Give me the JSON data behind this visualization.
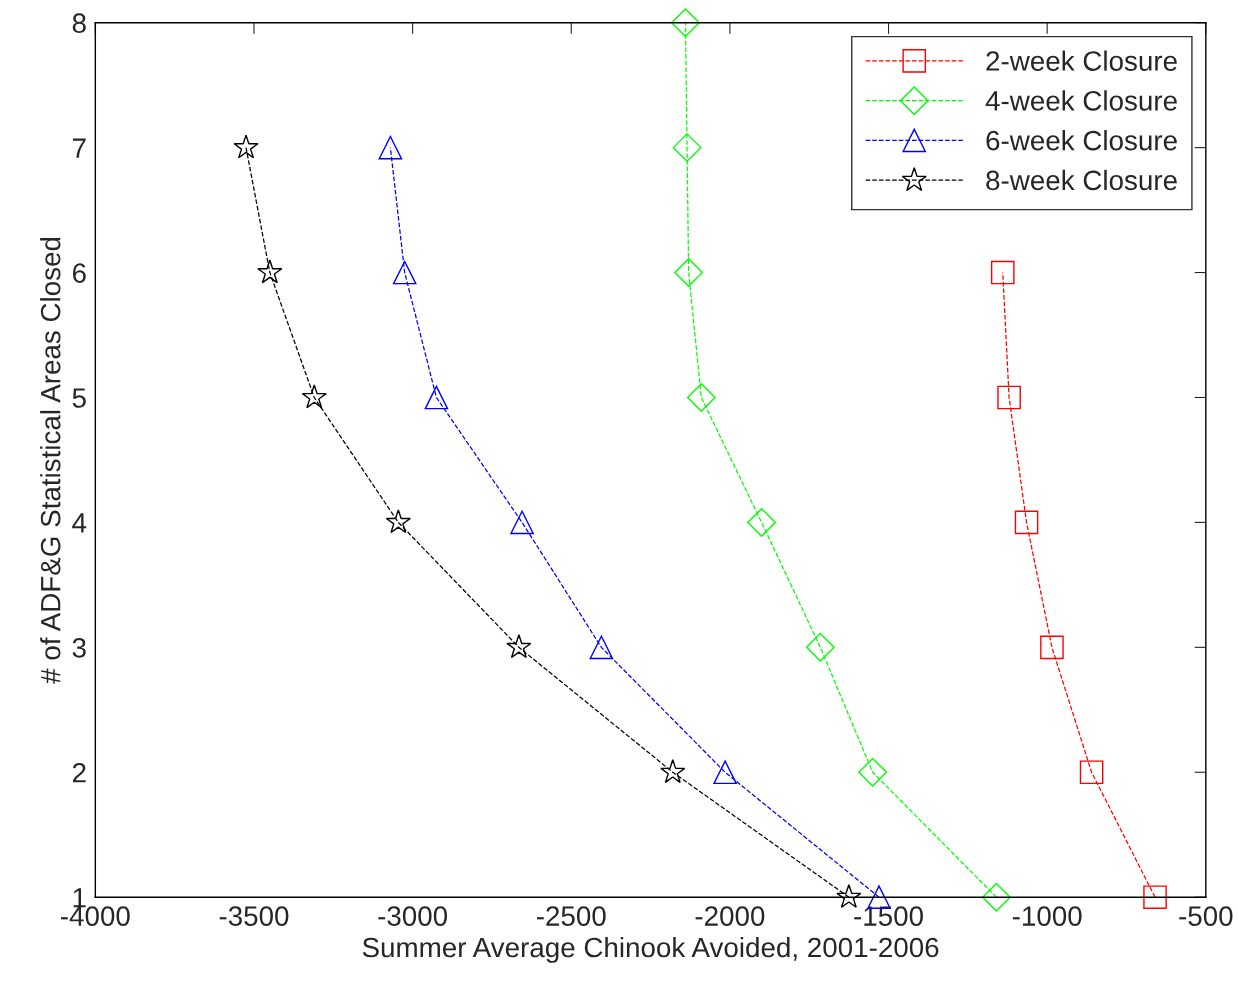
{
  "chart_data": {
    "type": "line",
    "xlabel": "Summer Average Chinook Avoided, 2001-2006",
    "ylabel": "# of ADF&G Statistical Areas Closed",
    "xlim": [
      -4000,
      -500
    ],
    "xticks": [
      -4000,
      -3500,
      -3000,
      -2500,
      -2000,
      -1500,
      -1000,
      -500
    ],
    "ylim": [
      1,
      8
    ],
    "yticks": [
      1,
      2,
      3,
      4,
      5,
      6,
      7,
      8
    ],
    "grid": false,
    "legend": "top right",
    "line_style": "dashed",
    "series": [
      {
        "name": "2-week Closure",
        "color": "#ff0000",
        "marker": "square",
        "x": [
          -660,
          -860,
          -985,
          -1065,
          -1120,
          -1140
        ],
        "values": [
          1,
          2,
          3,
          4,
          5,
          6
        ]
      },
      {
        "name": "4-week Closure",
        "color": "#00ff00",
        "marker": "diamond",
        "x": [
          -1160,
          -1550,
          -1715,
          -1900,
          -2090,
          -2130,
          -2135,
          -2140
        ],
        "values": [
          1,
          2,
          3,
          4,
          5,
          6,
          7,
          8
        ]
      },
      {
        "name": "6-week Closure",
        "color": "#0000ff",
        "marker": "triangle",
        "x": [
          -1530,
          -2015,
          -2405,
          -2655,
          -2925,
          -3025,
          -3070
        ],
        "values": [
          1,
          2,
          3,
          4,
          5,
          6,
          7
        ]
      },
      {
        "name": "8-week Closure",
        "color": "#000000",
        "marker": "star",
        "x": [
          -1625,
          -2180,
          -2665,
          -3045,
          -3310,
          -3450,
          -3525
        ],
        "values": [
          1,
          2,
          3,
          4,
          5,
          6,
          7
        ]
      }
    ]
  }
}
